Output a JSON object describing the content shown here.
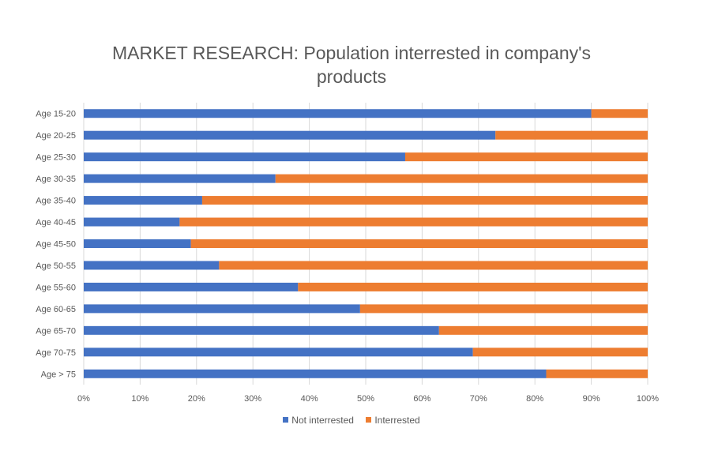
{
  "chart_data": {
    "type": "bar",
    "orientation": "horizontal",
    "stacked": "percent",
    "title": "MARKET RESEARCH: Population interrested in company's products",
    "categories": [
      "Age 15-20",
      "Age 20-25",
      "Age 25-30",
      "Age 30-35",
      "Age 35-40",
      "Age 40-45",
      "Age 45-50",
      "Age 50-55",
      "Age 55-60",
      "Age 60-65",
      "Age 65-70",
      "Age 70-75",
      "Age > 75"
    ],
    "series": [
      {
        "name": "Not interrested",
        "color": "#4472C4",
        "values": [
          90,
          73,
          57,
          34,
          21,
          17,
          19,
          24,
          38,
          49,
          63,
          69,
          82
        ]
      },
      {
        "name": "Interrested",
        "color": "#ED7D31",
        "values": [
          10,
          27,
          43,
          66,
          79,
          83,
          81,
          76,
          62,
          51,
          37,
          31,
          18
        ]
      }
    ],
    "xlim": [
      0,
      100
    ],
    "x_ticks": [
      "0%",
      "10%",
      "20%",
      "30%",
      "40%",
      "50%",
      "60%",
      "70%",
      "80%",
      "90%",
      "100%"
    ],
    "xlabel": "",
    "ylabel": "",
    "grid": "vertical",
    "legend_position": "bottom"
  }
}
